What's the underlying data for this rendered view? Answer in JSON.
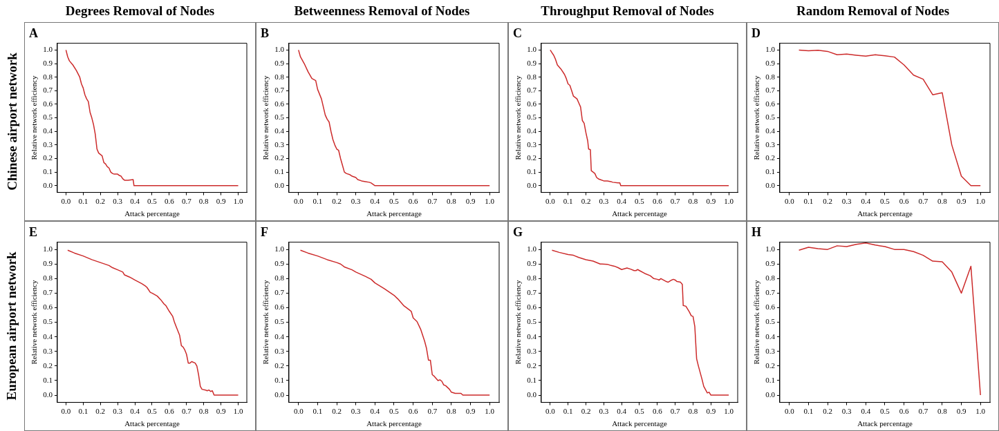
{
  "chart_data": [
    {
      "type": "other",
      "annotations": [
        "Degrees Removal of Nodes",
        "Betweenness Removal of Nodes",
        "Throughput Removal of Nodes",
        "Random Removal of Nodes",
        "Chinese airport network",
        "European airport network"
      ]
    },
    {
      "type": "line",
      "title": "A",
      "xlabel": "Attack percentage",
      "ylabel": "Relative network efficiency",
      "color": "#cc2a2a",
      "xlim": [
        -0.05,
        1.05
      ],
      "ylim": [
        -0.05,
        1.05
      ],
      "xticks": [
        {
          "value": 0,
          "label": "0.0"
        },
        {
          "value": 0.1,
          "label": "0.1"
        },
        {
          "value": 0.2,
          "label": "0.2"
        },
        {
          "value": 0.3,
          "label": "0.3"
        },
        {
          "value": 0.4,
          "label": "0.4"
        },
        {
          "value": 0.5,
          "label": "0.5"
        },
        {
          "value": 0.6,
          "label": "0.6"
        },
        {
          "value": 0.7,
          "label": "0.7"
        },
        {
          "value": 0.8,
          "label": "0.8"
        },
        {
          "value": 0.9,
          "label": "0.9"
        },
        {
          "value": 1,
          "label": "1.0"
        }
      ],
      "yticks": [
        {
          "value": 0,
          "label": "0.0"
        },
        {
          "value": 0.1,
          "label": "0.1"
        },
        {
          "value": 0.2,
          "label": "0.2"
        },
        {
          "value": 0.3,
          "label": "0.3"
        },
        {
          "value": 0.4,
          "label": "0.4"
        },
        {
          "value": 0.5,
          "label": "0.5"
        },
        {
          "value": 0.6,
          "label": "0.6"
        },
        {
          "value": 0.7,
          "label": "0.7"
        },
        {
          "value": 0.8,
          "label": "0.8"
        },
        {
          "value": 0.9,
          "label": "0.9"
        },
        {
          "value": 1,
          "label": "1.0"
        }
      ],
      "x": [
        0,
        0.01,
        0.02,
        0.04,
        0.06,
        0.08,
        0.09,
        0.1,
        0.11,
        0.12,
        0.13,
        0.14,
        0.15,
        0.16,
        0.17,
        0.18,
        0.19,
        0.21,
        0.22,
        0.23,
        0.24,
        0.25,
        0.26,
        0.27,
        0.28,
        0.3,
        0.31,
        0.32,
        0.33,
        0.34,
        0.36,
        0.39,
        0.395,
        1.0
      ],
      "values": [
        1.0,
        0.95,
        0.92,
        0.89,
        0.85,
        0.8,
        0.75,
        0.72,
        0.67,
        0.64,
        0.62,
        0.54,
        0.5,
        0.45,
        0.38,
        0.27,
        0.24,
        0.22,
        0.17,
        0.16,
        0.14,
        0.13,
        0.1,
        0.09,
        0.085,
        0.085,
        0.075,
        0.07,
        0.05,
        0.04,
        0.04,
        0.045,
        0,
        0
      ]
    },
    {
      "type": "line",
      "title": "B",
      "xlabel": "Attack percentage",
      "ylabel": "Relative network efficiency",
      "color": "#cc2a2a",
      "xlim": [
        -0.05,
        1.05
      ],
      "ylim": [
        -0.05,
        1.05
      ],
      "xticks": [
        {
          "value": 0,
          "label": "0.0"
        },
        {
          "value": 0.1,
          "label": "0.1"
        },
        {
          "value": 0.2,
          "label": "0.2"
        },
        {
          "value": 0.3,
          "label": "0.3"
        },
        {
          "value": 0.4,
          "label": "0.4"
        },
        {
          "value": 0.5,
          "label": "0.5"
        },
        {
          "value": 0.6,
          "label": "0.6"
        },
        {
          "value": 0.7,
          "label": "0.7"
        },
        {
          "value": 0.8,
          "label": "0.8"
        },
        {
          "value": 0.9,
          "label": "0.9"
        },
        {
          "value": 1,
          "label": "1.0"
        }
      ],
      "yticks": [
        {
          "value": 0,
          "label": "0.0"
        },
        {
          "value": 0.1,
          "label": "0.1"
        },
        {
          "value": 0.2,
          "label": "0.2"
        },
        {
          "value": 0.3,
          "label": "0.3"
        },
        {
          "value": 0.4,
          "label": "0.4"
        },
        {
          "value": 0.5,
          "label": "0.5"
        },
        {
          "value": 0.6,
          "label": "0.6"
        },
        {
          "value": 0.7,
          "label": "0.7"
        },
        {
          "value": 0.8,
          "label": "0.8"
        },
        {
          "value": 0.9,
          "label": "0.9"
        },
        {
          "value": 1,
          "label": "1.0"
        }
      ],
      "x": [
        0,
        0.01,
        0.03,
        0.05,
        0.07,
        0.09,
        0.1,
        0.12,
        0.13,
        0.14,
        0.15,
        0.16,
        0.17,
        0.18,
        0.19,
        0.2,
        0.21,
        0.22,
        0.23,
        0.24,
        0.25,
        0.27,
        0.28,
        0.3,
        0.31,
        0.33,
        0.35,
        0.37,
        0.38,
        0.4,
        1.0
      ],
      "values": [
        1.0,
        0.95,
        0.9,
        0.84,
        0.79,
        0.775,
        0.71,
        0.64,
        0.58,
        0.52,
        0.49,
        0.47,
        0.4,
        0.34,
        0.3,
        0.27,
        0.26,
        0.2,
        0.15,
        0.1,
        0.09,
        0.08,
        0.07,
        0.06,
        0.045,
        0.035,
        0.03,
        0.025,
        0.02,
        0,
        0
      ]
    },
    {
      "type": "line",
      "title": "C",
      "xlabel": "Attack percentage",
      "ylabel": "Relative network efficiency",
      "color": "#cc2a2a",
      "xlim": [
        -0.05,
        1.05
      ],
      "ylim": [
        -0.05,
        1.05
      ],
      "xticks": [
        {
          "value": 0,
          "label": "0.0"
        },
        {
          "value": 0.1,
          "label": "0.1"
        },
        {
          "value": 0.2,
          "label": "0.2"
        },
        {
          "value": 0.3,
          "label": "0.3"
        },
        {
          "value": 0.4,
          "label": "0.4"
        },
        {
          "value": 0.5,
          "label": "0.5"
        },
        {
          "value": 0.6,
          "label": "0.6"
        },
        {
          "value": 0.7,
          "label": "0.7"
        },
        {
          "value": 0.8,
          "label": "0.8"
        },
        {
          "value": 0.9,
          "label": "0.9"
        },
        {
          "value": 1,
          "label": "1.0"
        }
      ],
      "yticks": [
        {
          "value": 0,
          "label": "0.0"
        },
        {
          "value": 0.1,
          "label": "0.1"
        },
        {
          "value": 0.2,
          "label": "0.2"
        },
        {
          "value": 0.3,
          "label": "0.3"
        },
        {
          "value": 0.4,
          "label": "0.4"
        },
        {
          "value": 0.5,
          "label": "0.5"
        },
        {
          "value": 0.6,
          "label": "0.6"
        },
        {
          "value": 0.7,
          "label": "0.7"
        },
        {
          "value": 0.8,
          "label": "0.8"
        },
        {
          "value": 0.9,
          "label": "0.9"
        },
        {
          "value": 1,
          "label": "1.0"
        }
      ],
      "x": [
        0,
        0.01,
        0.02,
        0.03,
        0.04,
        0.06,
        0.08,
        0.09,
        0.1,
        0.11,
        0.12,
        0.13,
        0.15,
        0.16,
        0.17,
        0.18,
        0.19,
        0.2,
        0.21,
        0.215,
        0.225,
        0.23,
        0.24,
        0.25,
        0.26,
        0.27,
        0.28,
        0.3,
        0.32,
        0.34,
        0.35,
        0.38,
        0.39,
        0.395,
        1.0
      ],
      "values": [
        1.0,
        0.98,
        0.96,
        0.93,
        0.89,
        0.86,
        0.82,
        0.79,
        0.75,
        0.74,
        0.7,
        0.66,
        0.64,
        0.61,
        0.58,
        0.48,
        0.46,
        0.39,
        0.33,
        0.27,
        0.265,
        0.11,
        0.1,
        0.09,
        0.06,
        0.05,
        0.045,
        0.035,
        0.035,
        0.03,
        0.025,
        0.02,
        0.02,
        0,
        0
      ]
    },
    {
      "type": "line",
      "title": "D",
      "xlabel": "Attack percentage",
      "ylabel": "Relative network efficiency",
      "color": "#cc2a2a",
      "xlim": [
        -0.05,
        1.05
      ],
      "ylim": [
        -0.05,
        1.05
      ],
      "xticks": [
        {
          "value": 0,
          "label": "0.0"
        },
        {
          "value": 0.1,
          "label": "0.1"
        },
        {
          "value": 0.2,
          "label": "0.2"
        },
        {
          "value": 0.3,
          "label": "0.3"
        },
        {
          "value": 0.4,
          "label": "0.4"
        },
        {
          "value": 0.5,
          "label": "0.5"
        },
        {
          "value": 0.6,
          "label": "0.6"
        },
        {
          "value": 0.7,
          "label": "0.7"
        },
        {
          "value": 0.8,
          "label": "0.8"
        },
        {
          "value": 0.9,
          "label": "0.9"
        },
        {
          "value": 1,
          "label": "1.0"
        }
      ],
      "yticks": [
        {
          "value": 0,
          "label": "0.0"
        },
        {
          "value": 0.1,
          "label": "0.1"
        },
        {
          "value": 0.2,
          "label": "0.2"
        },
        {
          "value": 0.3,
          "label": "0.3"
        },
        {
          "value": 0.4,
          "label": "0.4"
        },
        {
          "value": 0.5,
          "label": "0.5"
        },
        {
          "value": 0.6,
          "label": "0.6"
        },
        {
          "value": 0.7,
          "label": "0.7"
        },
        {
          "value": 0.8,
          "label": "0.8"
        },
        {
          "value": 0.9,
          "label": "0.9"
        },
        {
          "value": 1,
          "label": "1.0"
        }
      ],
      "x": [
        0.05,
        0.1,
        0.15,
        0.2,
        0.25,
        0.3,
        0.35,
        0.4,
        0.45,
        0.5,
        0.55,
        0.6,
        0.65,
        0.7,
        0.75,
        0.8,
        0.85,
        0.9,
        0.95,
        1.0
      ],
      "values": [
        1.0,
        0.995,
        0.998,
        0.99,
        0.965,
        0.97,
        0.962,
        0.955,
        0.965,
        0.957,
        0.948,
        0.89,
        0.815,
        0.785,
        0.67,
        0.685,
        0.3,
        0.07,
        0,
        0
      ]
    },
    {
      "type": "line",
      "title": "E",
      "xlabel": "Attack percentage",
      "ylabel": "Relative network efficiency",
      "color": "#cc2a2a",
      "xlim": [
        -0.05,
        1.05
      ],
      "ylim": [
        -0.05,
        1.05
      ],
      "xticks": [
        {
          "value": 0,
          "label": "0.0"
        },
        {
          "value": 0.1,
          "label": "0.1"
        },
        {
          "value": 0.2,
          "label": "0.2"
        },
        {
          "value": 0.3,
          "label": "0.3"
        },
        {
          "value": 0.4,
          "label": "0.4"
        },
        {
          "value": 0.5,
          "label": "0.5"
        },
        {
          "value": 0.6,
          "label": "0.6"
        },
        {
          "value": 0.7,
          "label": "0.7"
        },
        {
          "value": 0.8,
          "label": "0.8"
        },
        {
          "value": 0.9,
          "label": "0.9"
        },
        {
          "value": 1,
          "label": "1.0"
        }
      ],
      "yticks": [
        {
          "value": 0,
          "label": "0.0"
        },
        {
          "value": 0.1,
          "label": "0.1"
        },
        {
          "value": 0.2,
          "label": "0.2"
        },
        {
          "value": 0.3,
          "label": "0.3"
        },
        {
          "value": 0.4,
          "label": "0.4"
        },
        {
          "value": 0.5,
          "label": "0.5"
        },
        {
          "value": 0.6,
          "label": "0.6"
        },
        {
          "value": 0.7,
          "label": "0.7"
        },
        {
          "value": 0.8,
          "label": "0.8"
        },
        {
          "value": 0.9,
          "label": "0.9"
        },
        {
          "value": 1,
          "label": "1.0"
        }
      ],
      "x": [
        0.01,
        0.05,
        0.1,
        0.15,
        0.2,
        0.25,
        0.27,
        0.3,
        0.33,
        0.34,
        0.37,
        0.4,
        0.44,
        0.46,
        0.47,
        0.49,
        0.5,
        0.53,
        0.55,
        0.57,
        0.58,
        0.6,
        0.62,
        0.63,
        0.65,
        0.66,
        0.67,
        0.68,
        0.69,
        0.7,
        0.71,
        0.72,
        0.73,
        0.75,
        0.76,
        0.77,
        0.78,
        0.79,
        0.81,
        0.82,
        0.83,
        0.84,
        0.85,
        0.86,
        1.0
      ],
      "values": [
        0.995,
        0.975,
        0.955,
        0.93,
        0.91,
        0.89,
        0.875,
        0.86,
        0.845,
        0.825,
        0.81,
        0.79,
        0.765,
        0.75,
        0.74,
        0.705,
        0.7,
        0.68,
        0.655,
        0.625,
        0.615,
        0.575,
        0.54,
        0.5,
        0.44,
        0.41,
        0.34,
        0.33,
        0.31,
        0.28,
        0.22,
        0.22,
        0.23,
        0.22,
        0.2,
        0.14,
        0.06,
        0.04,
        0.035,
        0.03,
        0.035,
        0.025,
        0.03,
        0,
        0
      ]
    },
    {
      "type": "line",
      "title": "F",
      "xlabel": "Attack percentage",
      "ylabel": "Relative network efficiency",
      "color": "#cc2a2a",
      "xlim": [
        -0.05,
        1.05
      ],
      "ylim": [
        -0.05,
        1.05
      ],
      "xticks": [
        {
          "value": 0,
          "label": "0.0"
        },
        {
          "value": 0.1,
          "label": "0.1"
        },
        {
          "value": 0.2,
          "label": "0.2"
        },
        {
          "value": 0.3,
          "label": "0.3"
        },
        {
          "value": 0.4,
          "label": "0.4"
        },
        {
          "value": 0.5,
          "label": "0.5"
        },
        {
          "value": 0.6,
          "label": "0.6"
        },
        {
          "value": 0.7,
          "label": "0.7"
        },
        {
          "value": 0.8,
          "label": "0.8"
        },
        {
          "value": 0.9,
          "label": "0.9"
        },
        {
          "value": 1,
          "label": "1.0"
        }
      ],
      "yticks": [
        {
          "value": 0,
          "label": "0.0"
        },
        {
          "value": 0.1,
          "label": "0.1"
        },
        {
          "value": 0.2,
          "label": "0.2"
        },
        {
          "value": 0.3,
          "label": "0.3"
        },
        {
          "value": 0.4,
          "label": "0.4"
        },
        {
          "value": 0.5,
          "label": "0.5"
        },
        {
          "value": 0.6,
          "label": "0.6"
        },
        {
          "value": 0.7,
          "label": "0.7"
        },
        {
          "value": 0.8,
          "label": "0.8"
        },
        {
          "value": 0.9,
          "label": "0.9"
        },
        {
          "value": 1,
          "label": "1.0"
        }
      ],
      "x": [
        0.01,
        0.05,
        0.1,
        0.15,
        0.2,
        0.22,
        0.24,
        0.28,
        0.3,
        0.35,
        0.38,
        0.4,
        0.45,
        0.5,
        0.52,
        0.55,
        0.58,
        0.59,
        0.6,
        0.62,
        0.64,
        0.66,
        0.67,
        0.68,
        0.69,
        0.7,
        0.71,
        0.73,
        0.74,
        0.75,
        0.76,
        0.77,
        0.79,
        0.8,
        0.82,
        0.85,
        0.86,
        1.0
      ],
      "values": [
        0.995,
        0.975,
        0.955,
        0.93,
        0.91,
        0.9,
        0.88,
        0.86,
        0.845,
        0.815,
        0.795,
        0.77,
        0.73,
        0.685,
        0.66,
        0.615,
        0.585,
        0.575,
        0.53,
        0.505,
        0.45,
        0.37,
        0.32,
        0.24,
        0.24,
        0.14,
        0.13,
        0.1,
        0.105,
        0.095,
        0.07,
        0.065,
        0.04,
        0.02,
        0.012,
        0.012,
        0,
        0
      ]
    },
    {
      "type": "line",
      "title": "G",
      "xlabel": "Attack percentage",
      "ylabel": "Relative network efficiency",
      "color": "#cc2a2a",
      "xlim": [
        -0.05,
        1.05
      ],
      "ylim": [
        -0.05,
        1.05
      ],
      "xticks": [
        {
          "value": 0,
          "label": "0.0"
        },
        {
          "value": 0.1,
          "label": "0.1"
        },
        {
          "value": 0.2,
          "label": "0.2"
        },
        {
          "value": 0.3,
          "label": "0.3"
        },
        {
          "value": 0.4,
          "label": "0.4"
        },
        {
          "value": 0.5,
          "label": "0.5"
        },
        {
          "value": 0.6,
          "label": "0.6"
        },
        {
          "value": 0.7,
          "label": "0.7"
        },
        {
          "value": 0.8,
          "label": "0.8"
        },
        {
          "value": 0.9,
          "label": "0.9"
        },
        {
          "value": 1,
          "label": "1.0"
        }
      ],
      "yticks": [
        {
          "value": 0,
          "label": "0.0"
        },
        {
          "value": 0.1,
          "label": "0.1"
        },
        {
          "value": 0.2,
          "label": "0.2"
        },
        {
          "value": 0.3,
          "label": "0.3"
        },
        {
          "value": 0.4,
          "label": "0.4"
        },
        {
          "value": 0.5,
          "label": "0.5"
        },
        {
          "value": 0.6,
          "label": "0.6"
        },
        {
          "value": 0.7,
          "label": "0.7"
        },
        {
          "value": 0.8,
          "label": "0.8"
        },
        {
          "value": 0.9,
          "label": "0.9"
        },
        {
          "value": 1,
          "label": "1.0"
        }
      ],
      "x": [
        0.01,
        0.05,
        0.1,
        0.13,
        0.16,
        0.2,
        0.24,
        0.28,
        0.29,
        0.32,
        0.34,
        0.36,
        0.38,
        0.4,
        0.43,
        0.45,
        0.47,
        0.48,
        0.49,
        0.5,
        0.53,
        0.56,
        0.58,
        0.6,
        0.61,
        0.62,
        0.65,
        0.66,
        0.68,
        0.69,
        0.7,
        0.71,
        0.73,
        0.74,
        0.745,
        0.76,
        0.78,
        0.79,
        0.8,
        0.81,
        0.82,
        0.83,
        0.85,
        0.86,
        0.88,
        0.89,
        0.9,
        1.0
      ],
      "values": [
        0.995,
        0.98,
        0.965,
        0.96,
        0.945,
        0.93,
        0.92,
        0.9,
        0.9,
        0.898,
        0.89,
        0.885,
        0.875,
        0.862,
        0.873,
        0.865,
        0.855,
        0.855,
        0.862,
        0.855,
        0.835,
        0.82,
        0.8,
        0.795,
        0.79,
        0.8,
        0.78,
        0.775,
        0.79,
        0.795,
        0.79,
        0.78,
        0.775,
        0.76,
        0.615,
        0.61,
        0.57,
        0.545,
        0.54,
        0.47,
        0.25,
        0.2,
        0.11,
        0.06,
        0.015,
        0.02,
        0,
        0
      ]
    },
    {
      "type": "line",
      "title": "H",
      "xlabel": "Attack percentage",
      "ylabel": "Relative network efficiency",
      "color": "#cc2a2a",
      "xlim": [
        -0.05,
        1.05
      ],
      "ylim": [
        -0.05,
        1.05
      ],
      "xticks": [
        {
          "value": 0,
          "label": "0.0"
        },
        {
          "value": 0.1,
          "label": "0.1"
        },
        {
          "value": 0.2,
          "label": "0.2"
        },
        {
          "value": 0.3,
          "label": "0.3"
        },
        {
          "value": 0.4,
          "label": "0.4"
        },
        {
          "value": 0.5,
          "label": "0.5"
        },
        {
          "value": 0.6,
          "label": "0.6"
        },
        {
          "value": 0.7,
          "label": "0.7"
        },
        {
          "value": 0.8,
          "label": "0.8"
        },
        {
          "value": 0.9,
          "label": "0.9"
        },
        {
          "value": 1,
          "label": "1.0"
        }
      ],
      "yticks": [
        {
          "value": 0,
          "label": "0.0"
        },
        {
          "value": 0.1,
          "label": "0.1"
        },
        {
          "value": 0.2,
          "label": "0.2"
        },
        {
          "value": 0.3,
          "label": "0.3"
        },
        {
          "value": 0.4,
          "label": "0.4"
        },
        {
          "value": 0.5,
          "label": "0.5"
        },
        {
          "value": 0.6,
          "label": "0.6"
        },
        {
          "value": 0.7,
          "label": "0.7"
        },
        {
          "value": 0.8,
          "label": "0.8"
        },
        {
          "value": 0.9,
          "label": "0.9"
        },
        {
          "value": 1,
          "label": "1.0"
        }
      ],
      "x": [
        0.05,
        0.1,
        0.15,
        0.2,
        0.25,
        0.3,
        0.35,
        0.4,
        0.45,
        0.5,
        0.55,
        0.6,
        0.65,
        0.7,
        0.75,
        0.8,
        0.85,
        0.9,
        0.95,
        1.0
      ],
      "values": [
        0.995,
        1.015,
        1.005,
        1.0,
        1.025,
        1.02,
        1.035,
        1.045,
        1.03,
        1.02,
        1.0,
        1.0,
        0.985,
        0.96,
        0.92,
        0.915,
        0.845,
        0.7,
        0.885,
        0
      ]
    }
  ]
}
